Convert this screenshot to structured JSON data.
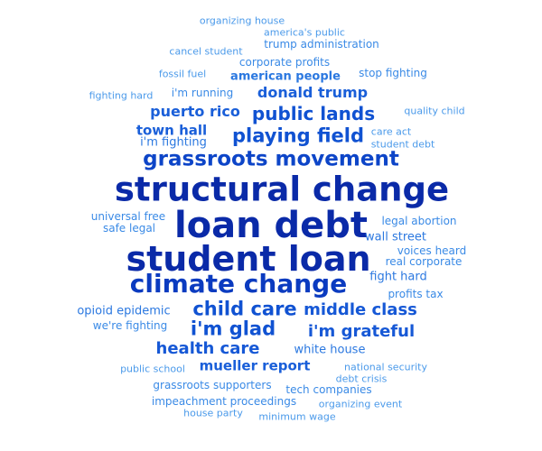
{
  "words": [
    {
      "text": "structural change",
      "weight": 10,
      "color": "#0a2aa8"
    },
    {
      "text": "loan debt",
      "weight": 10,
      "color": "#0a2aa8"
    },
    {
      "text": "student loan",
      "weight": 10,
      "color": "#0a2aa8"
    },
    {
      "text": "climate change",
      "weight": 8,
      "color": "#0b3bc0"
    },
    {
      "text": "grassroots movement",
      "weight": 7,
      "color": "#0d45c8"
    },
    {
      "text": "playing field",
      "weight": 6,
      "color": "#1052d2"
    },
    {
      "text": "public lands",
      "weight": 6,
      "color": "#1052d2"
    },
    {
      "text": "child care",
      "weight": 6,
      "color": "#1052d2"
    },
    {
      "text": "i'm glad",
      "weight": 6,
      "color": "#1052d2"
    },
    {
      "text": "middle class",
      "weight": 5,
      "color": "#1658d6"
    },
    {
      "text": "i'm grateful",
      "weight": 5,
      "color": "#1658d6"
    },
    {
      "text": "health care",
      "weight": 5,
      "color": "#1658d6"
    },
    {
      "text": "puerto rico",
      "weight": 4,
      "color": "#1a5fd9"
    },
    {
      "text": "donald trump",
      "weight": 4,
      "color": "#1a5fd9"
    },
    {
      "text": "town hall",
      "weight": 4,
      "color": "#1a5fd9"
    },
    {
      "text": "mueller report",
      "weight": 4,
      "color": "#1a5fd9"
    },
    {
      "text": "american people",
      "weight": 3,
      "color": "#2b78e0"
    },
    {
      "text": "i'm fighting",
      "weight": 3,
      "color": "#2b78e0"
    },
    {
      "text": "white house",
      "weight": 3,
      "color": "#2b78e0"
    },
    {
      "text": "opioid epidemic",
      "weight": 3,
      "color": "#2b78e0"
    },
    {
      "text": "fight hard",
      "weight": 3,
      "color": "#2b78e0"
    },
    {
      "text": "wall street",
      "weight": 3,
      "color": "#2b78e0"
    },
    {
      "text": "legal abortion",
      "weight": 2,
      "color": "#3a8ae6"
    },
    {
      "text": "universal free",
      "weight": 2,
      "color": "#3a8ae6"
    },
    {
      "text": "safe legal",
      "weight": 2,
      "color": "#3a8ae6"
    },
    {
      "text": "voices heard",
      "weight": 2,
      "color": "#3a8ae6"
    },
    {
      "text": "real corporate",
      "weight": 2,
      "color": "#3a8ae6"
    },
    {
      "text": "profits tax",
      "weight": 2,
      "color": "#3a8ae6"
    },
    {
      "text": "we're fighting",
      "weight": 2,
      "color": "#3a8ae6"
    },
    {
      "text": "trump administration",
      "weight": 2,
      "color": "#3a8ae6"
    },
    {
      "text": "corporate profits",
      "weight": 2,
      "color": "#3a8ae6"
    },
    {
      "text": "stop fighting",
      "weight": 2,
      "color": "#3a8ae6"
    },
    {
      "text": "i'm running",
      "weight": 2,
      "color": "#3a8ae6"
    },
    {
      "text": "impeachment proceedings",
      "weight": 2,
      "color": "#3a8ae6"
    },
    {
      "text": "grassroots supporters",
      "weight": 2,
      "color": "#3a8ae6"
    },
    {
      "text": "tech companies",
      "weight": 2,
      "color": "#3a8ae6"
    },
    {
      "text": "national security",
      "weight": 1,
      "color": "#4b9aea"
    },
    {
      "text": "debt crisis",
      "weight": 1,
      "color": "#4b9aea"
    },
    {
      "text": "organizing event",
      "weight": 1,
      "color": "#4b9aea"
    },
    {
      "text": "minimum wage",
      "weight": 1,
      "color": "#4b9aea"
    },
    {
      "text": "house party",
      "weight": 1,
      "color": "#4b9aea"
    },
    {
      "text": "public school",
      "weight": 1,
      "color": "#4b9aea"
    },
    {
      "text": "care act",
      "weight": 1,
      "color": "#4b9aea"
    },
    {
      "text": "student debt",
      "weight": 1,
      "color": "#4b9aea"
    },
    {
      "text": "quality child",
      "weight": 1,
      "color": "#4b9aea"
    },
    {
      "text": "fighting hard",
      "weight": 1,
      "color": "#4b9aea"
    },
    {
      "text": "fossil fuel",
      "weight": 1,
      "color": "#4b9aea"
    },
    {
      "text": "cancel student",
      "weight": 1,
      "color": "#4b9aea"
    },
    {
      "text": "organizing house",
      "weight": 1,
      "color": "#4b9aea"
    },
    {
      "text": "america's public",
      "weight": 1,
      "color": "#4b9aea"
    }
  ]
}
